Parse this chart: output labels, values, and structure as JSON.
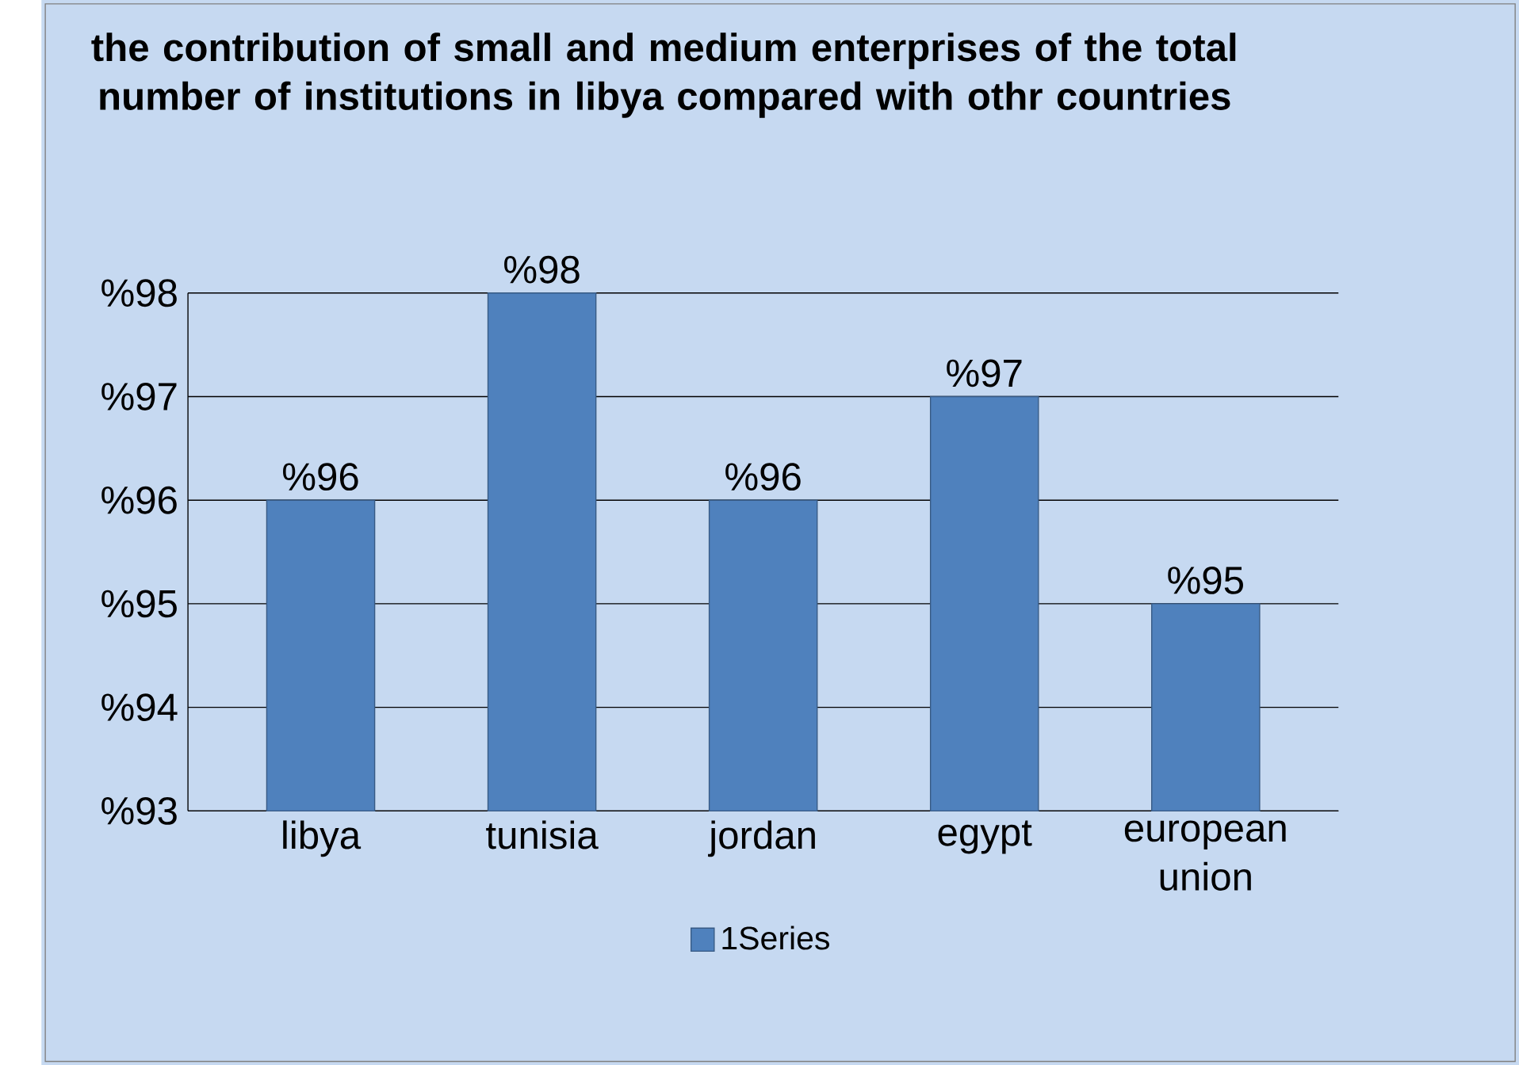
{
  "chart_data": {
    "type": "bar",
    "title": "the contribution of small and medium enterprises of  the total number of institutions in libya compared with othr countries",
    "categories": [
      "libya",
      "tunisia",
      "jordan",
      "egypt",
      "european union"
    ],
    "series": [
      {
        "name": "1Series",
        "color": "#4f81bd",
        "values": [
          96,
          98,
          96,
          97,
          95
        ],
        "value_labels": [
          "%96",
          "%98",
          "%96",
          "%97",
          "%95"
        ]
      }
    ],
    "ylim": [
      93,
      98
    ],
    "yticks": [
      {
        "value": 93,
        "label": "%93"
      },
      {
        "value": 94,
        "label": "%94"
      },
      {
        "value": 95,
        "label": "%95"
      },
      {
        "value": 96,
        "label": "%96"
      },
      {
        "value": 97,
        "label": "%97"
      },
      {
        "value": 98,
        "label": "%98"
      }
    ],
    "grid": "y",
    "legend": "bottom"
  }
}
